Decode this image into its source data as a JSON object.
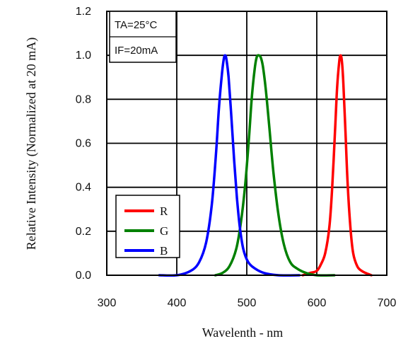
{
  "chart_data": {
    "type": "line",
    "xlabel": "Wavelenth - nm",
    "ylabel": "Relative Intensity (Normalized at 20 mA)",
    "xlim": [
      300,
      700
    ],
    "ylim": [
      0,
      1.2
    ],
    "x_ticks": [
      300,
      400,
      500,
      600,
      700
    ],
    "y_ticks": [
      0.0,
      0.2,
      0.4,
      0.6,
      0.8,
      1.0,
      1.2
    ],
    "x_tick_labels": [
      "300",
      "400",
      "500",
      "600",
      "700"
    ],
    "y_tick_labels": [
      "0.0",
      "0.2",
      "0.4",
      "0.6",
      "0.8",
      "1.0",
      "1.2"
    ],
    "grid": true,
    "annotations": [
      "TA=25°C",
      "IF=20mA"
    ],
    "legend_position": "bottom-left",
    "series": [
      {
        "name": "R",
        "color": "#ff0000",
        "x": [
          580,
          590,
          600,
          606,
          612,
          618,
          622,
          626,
          629,
          632,
          634,
          636,
          638,
          641,
          644,
          648,
          652,
          658,
          664,
          670,
          678
        ],
        "y": [
          0.0,
          0.01,
          0.02,
          0.05,
          0.1,
          0.22,
          0.4,
          0.65,
          0.85,
          0.97,
          1.0,
          0.97,
          0.87,
          0.65,
          0.42,
          0.22,
          0.1,
          0.04,
          0.02,
          0.01,
          0.0
        ]
      },
      {
        "name": "G",
        "color": "#008000",
        "x": [
          455,
          465,
          475,
          485,
          492,
          498,
          503,
          507,
          511,
          514,
          517,
          520,
          523,
          527,
          532,
          538,
          545,
          553,
          562,
          572,
          585,
          600,
          625
        ],
        "y": [
          0.0,
          0.01,
          0.04,
          0.12,
          0.25,
          0.42,
          0.62,
          0.8,
          0.93,
          0.99,
          1.0,
          0.99,
          0.95,
          0.85,
          0.68,
          0.47,
          0.28,
          0.14,
          0.06,
          0.03,
          0.01,
          0.0,
          0.0
        ]
      },
      {
        "name": "B",
        "color": "#0000ff",
        "x": [
          375,
          400,
          420,
          432,
          442,
          450,
          456,
          460,
          464,
          467,
          469,
          471,
          474,
          478,
          482,
          486,
          490,
          495,
          502,
          512,
          525,
          545,
          575
        ],
        "y": [
          0.0,
          0.0,
          0.02,
          0.06,
          0.15,
          0.32,
          0.55,
          0.75,
          0.9,
          0.98,
          1.0,
          0.98,
          0.9,
          0.72,
          0.52,
          0.35,
          0.22,
          0.12,
          0.06,
          0.03,
          0.01,
          0.0,
          0.0
        ]
      }
    ]
  }
}
